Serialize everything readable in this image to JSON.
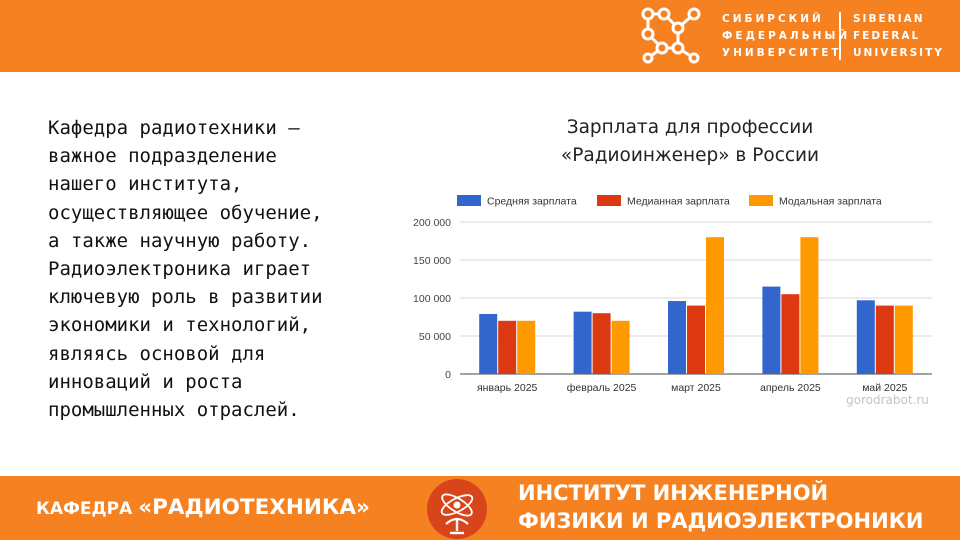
{
  "header": {
    "university_ru": [
      "СИБИРСКИЙ",
      "ФЕДЕРАЛЬНЫЙ",
      "УНИВЕРСИТЕТ"
    ],
    "university_en": [
      "SIBERIAN",
      "FEDERAL",
      "UNIVERSITY"
    ],
    "logo_icon": "molecule-logo-icon",
    "band_color": "#f68121"
  },
  "body_text": "Кафедра радиотехники —\nважное подразделение\nнашего института,\nосуществляющее обучение,\nа также научную работу.\nРадиоэлектроника играет\nключевую роль в развитии\nэкономики и технологий,\nявляясь основой для\nинноваций и роста\nпромышленных отраслей.",
  "chart_data": {
    "type": "bar",
    "title": "Зарплата для профессии\n«Радиоинженер» в России",
    "categories": [
      "январь 2025",
      "февраль 2025",
      "март 2025",
      "апрель 2025",
      "май 2025"
    ],
    "series": [
      {
        "name": "Средняя зарплата",
        "color": "#3366cc",
        "values": [
          79000,
          82000,
          96000,
          115000,
          97000
        ]
      },
      {
        "name": "Медианная зарплата",
        "color": "#dc3912",
        "values": [
          70000,
          80000,
          90000,
          105000,
          90000
        ]
      },
      {
        "name": "Модальная зарплата",
        "color": "#ff9900",
        "values": [
          70000,
          70000,
          180000,
          180000,
          90000
        ]
      }
    ],
    "yticks": [
      "0",
      "50 000",
      "100 000",
      "150 000",
      "200 000"
    ],
    "ylim": [
      0,
      200000
    ],
    "grid": true,
    "legend": "top"
  },
  "watermark": "gorodrabot.ru",
  "footer": {
    "dept_prefix": "КАФЕДРА ",
    "dept_name": "«РАДИОТЕХНИКА»",
    "emblem_icon": "radio-antenna-emblem-icon",
    "institute": "ИНСТИТУТ ИНЖЕНЕРНОЙ\nФИЗИКИ И РАДИОЭЛЕКТРОНИКИ"
  }
}
